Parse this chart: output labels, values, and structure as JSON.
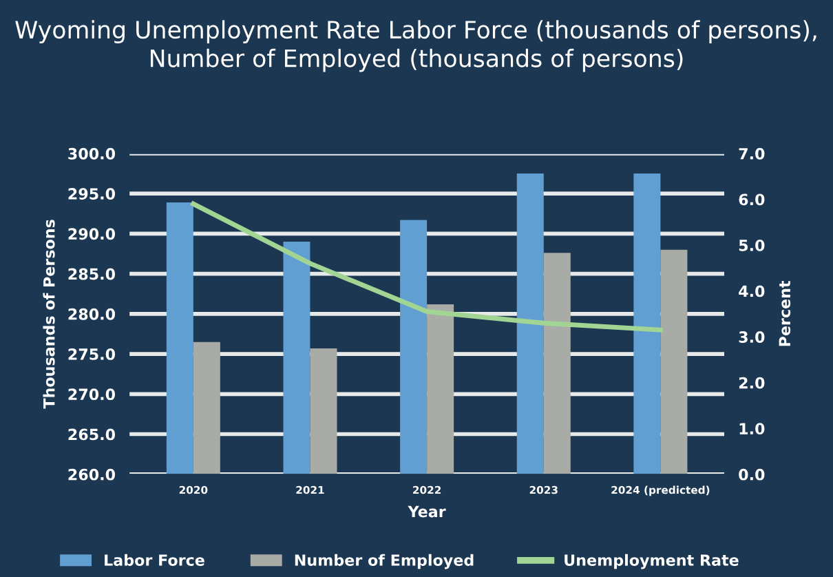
{
  "chart_data": {
    "type": "bar",
    "title": "Wyoming Unemployment Rate Labor Force (thousands of persons), Number of Employed (thousands of persons)",
    "xlabel": "Year",
    "ylabel": "Thousands of Persons",
    "y2label": "Percent",
    "categories": [
      "2020",
      "2021",
      "2022",
      "2023",
      "2024 (predicted)"
    ],
    "series": [
      {
        "name": "Labor Force",
        "color": "#619fd2",
        "values": [
          293.9,
          289.0,
          291.7,
          297.5,
          297.5
        ]
      },
      {
        "name": "Number of Employed",
        "color": "#a9aba7",
        "values": [
          276.5,
          275.7,
          281.2,
          287.6,
          288.0
        ]
      },
      {
        "name": "Unemployment Rate",
        "color": "#a2d494",
        "type": "line",
        "axis": "y2",
        "values": [
          5.9,
          4.6,
          3.55,
          3.3,
          3.15
        ]
      }
    ],
    "ylim": [
      260,
      300
    ],
    "yticks": [
      {
        "value": 260,
        "label": "260.0"
      },
      {
        "value": 265,
        "label": "265.0"
      },
      {
        "value": 270,
        "label": "270.0"
      },
      {
        "value": 275,
        "label": "275.0"
      },
      {
        "value": 280,
        "label": "280.0"
      },
      {
        "value": 285,
        "label": "285.0"
      },
      {
        "value": 290,
        "label": "290.0"
      },
      {
        "value": 295,
        "label": "295.0"
      },
      {
        "value": 300,
        "label": "300.0"
      }
    ],
    "y2lim": [
      0,
      7
    ],
    "y2ticks": [
      {
        "value": 0,
        "label": "0.0"
      },
      {
        "value": 1,
        "label": "1.0"
      },
      {
        "value": 2,
        "label": "2.0"
      },
      {
        "value": 3,
        "label": "3.0"
      },
      {
        "value": 4,
        "label": "4.0"
      },
      {
        "value": 5,
        "label": "5.0"
      },
      {
        "value": 6,
        "label": "6.0"
      },
      {
        "value": 7,
        "label": "7.0"
      }
    ],
    "grid": "y",
    "legend": "bottom",
    "marker": "none",
    "line_style": "solid"
  }
}
